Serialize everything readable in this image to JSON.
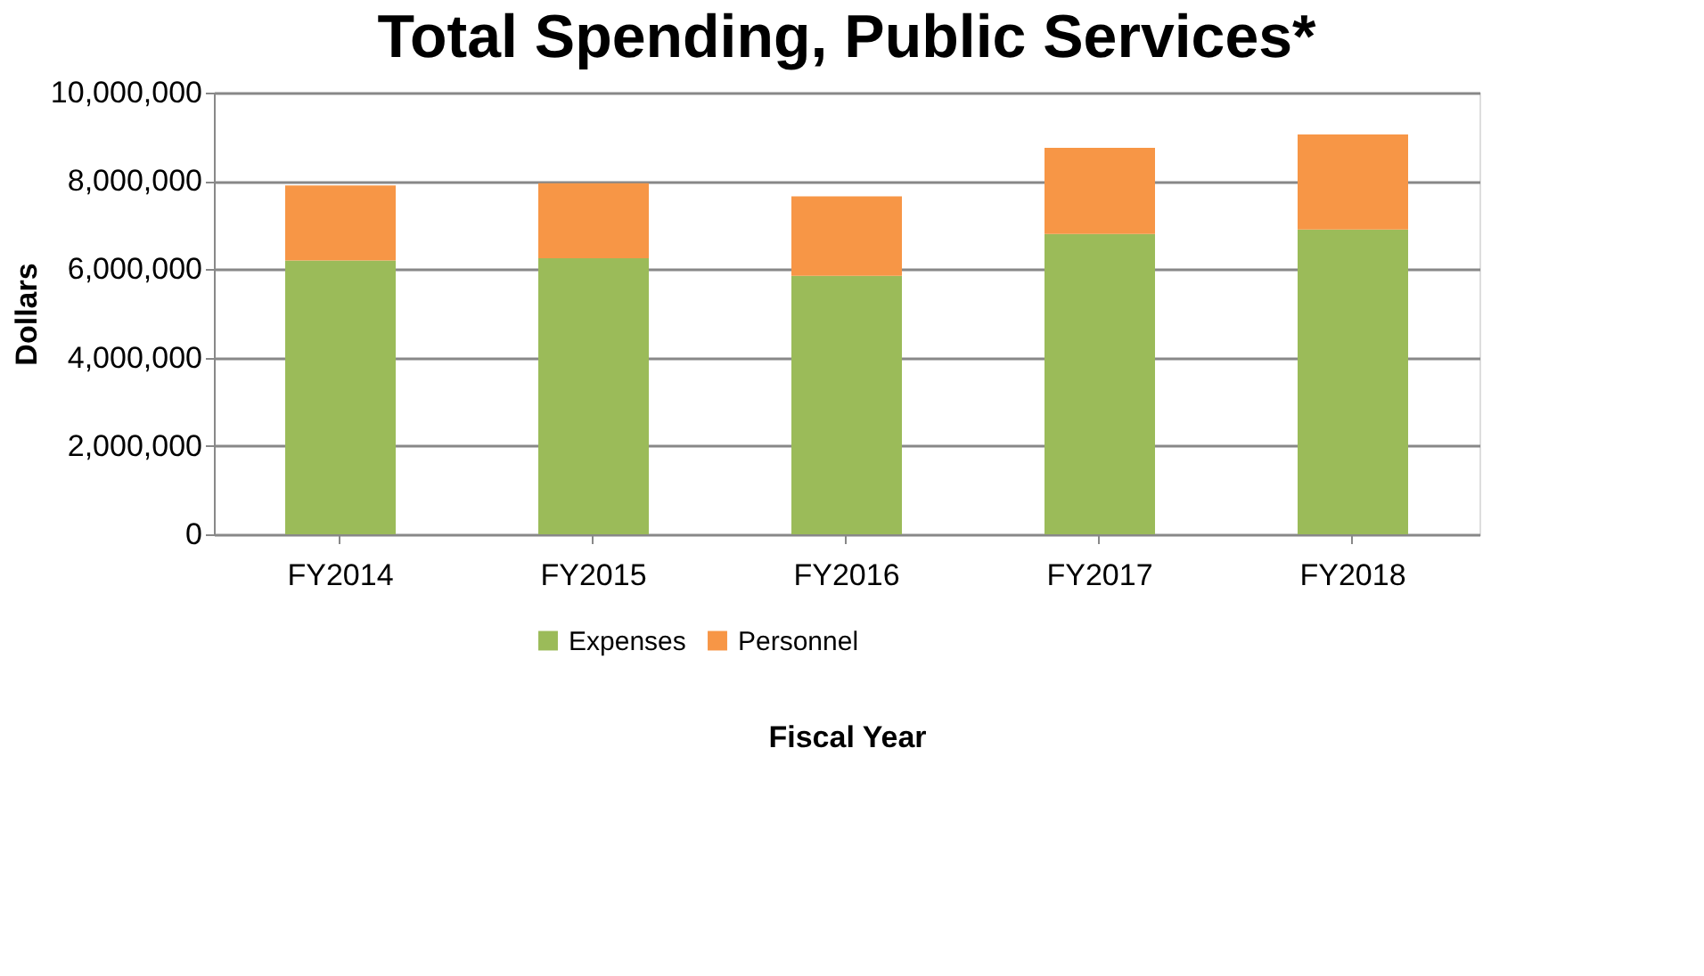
{
  "chart_data": {
    "type": "bar",
    "title": "Total Spending, Public Services*",
    "xlabel": "Fiscal Year",
    "ylabel": "Dollars",
    "categories": [
      "FY2014",
      "FY2015",
      "FY2016",
      "FY2017",
      "FY2018"
    ],
    "stacked": true,
    "series": [
      {
        "name": "Expenses",
        "color": "#9bbb59",
        "values": [
          6200000,
          6250000,
          5850000,
          6800000,
          6900000
        ]
      },
      {
        "name": "Personnel",
        "color": "#f79646",
        "values": [
          1700000,
          1700000,
          1800000,
          1950000,
          2150000
        ]
      }
    ],
    "ylim": [
      0,
      10000000
    ],
    "yticks": [
      0,
      {
        "value": 2000000,
        "label": "2,000,000"
      },
      {
        "value": 4000000,
        "label": "4,000,000"
      },
      {
        "value": 6000000,
        "label": "6,000,000"
      },
      {
        "value": 8000000,
        "label": "8,000,000"
      },
      {
        "value": 10000000,
        "label": "10,000,000"
      }
    ],
    "grid": "y",
    "legend": "bottom"
  }
}
